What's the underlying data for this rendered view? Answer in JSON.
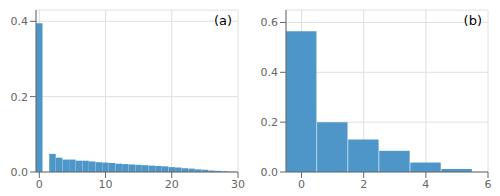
{
  "chart_data": [
    {
      "type": "bar",
      "annotations": [
        "(a)"
      ],
      "x": [
        0,
        1,
        2,
        3,
        4,
        5,
        6,
        7,
        8,
        9,
        10,
        11,
        12,
        13,
        14,
        15,
        16,
        17,
        18,
        19,
        20,
        21,
        22,
        23,
        24,
        25,
        26,
        27,
        28,
        29
      ],
      "values": [
        0.395,
        0.0,
        0.048,
        0.038,
        0.033,
        0.033,
        0.03,
        0.03,
        0.028,
        0.026,
        0.025,
        0.024,
        0.022,
        0.021,
        0.02,
        0.019,
        0.018,
        0.017,
        0.016,
        0.015,
        0.013,
        0.012,
        0.01,
        0.009,
        0.007,
        0.006,
        0.004,
        0.003,
        0.002,
        0.001
      ],
      "color": "#4f96c8",
      "xlim": [
        -0.5,
        30
      ],
      "ylim": [
        0,
        0.43
      ],
      "xticks": [
        0,
        10,
        20,
        30
      ],
      "yticks": [
        {
          "value": 0,
          "label": "0.0"
        },
        0.2,
        0.4
      ],
      "grid": true
    },
    {
      "type": "bar",
      "annotations": [
        "(b)"
      ],
      "x": [
        0,
        1,
        2,
        3,
        4,
        5
      ],
      "values": [
        0.565,
        0.2,
        0.13,
        0.085,
        0.038,
        0.012
      ],
      "color": "#4f96c8",
      "xlim": [
        -0.5,
        6.0
      ],
      "ylim": [
        0,
        0.65
      ],
      "xticks": [
        0,
        2,
        4,
        6
      ],
      "yticks": [
        {
          "value": 0,
          "label": "0.0"
        },
        0.2,
        0.4,
        0.6
      ],
      "grid": true
    }
  ]
}
